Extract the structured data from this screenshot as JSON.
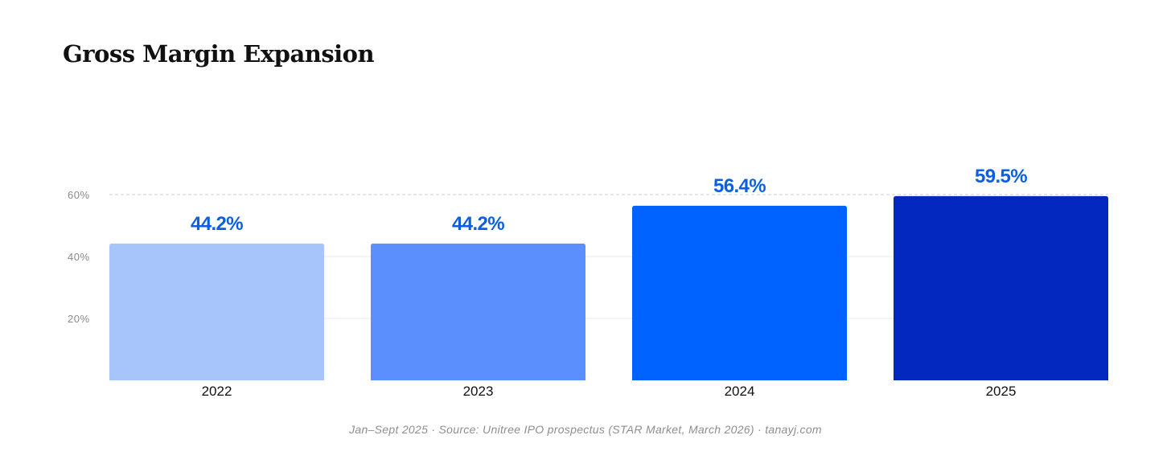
{
  "chart_data": {
    "type": "bar",
    "title": "Gross Margin Expansion",
    "categories": [
      "2022",
      "2023",
      "2024",
      "2025"
    ],
    "values": [
      44.2,
      44.2,
      56.4,
      59.5
    ],
    "value_labels": [
      "44.2%",
      "44.2%",
      "56.4%",
      "59.5%"
    ],
    "bar_colors": [
      "#a8c5fb",
      "#5b8ffd",
      "#0062ff",
      "#0228c0"
    ],
    "value_label_color": "#0b5fe0",
    "ylim": [
      0,
      60
    ],
    "yticks": [
      {
        "value": 20,
        "label": "20%"
      },
      {
        "value": 40,
        "label": "40%"
      },
      {
        "value": 60,
        "label": "60%"
      }
    ],
    "grid": true,
    "xlabel": "",
    "ylabel": ""
  },
  "footer": {
    "text": "Jan–Sept 2025  ·  Source: Unitree IPO prospectus (STAR Market, March 2026)  ·  tanayj.com"
  }
}
